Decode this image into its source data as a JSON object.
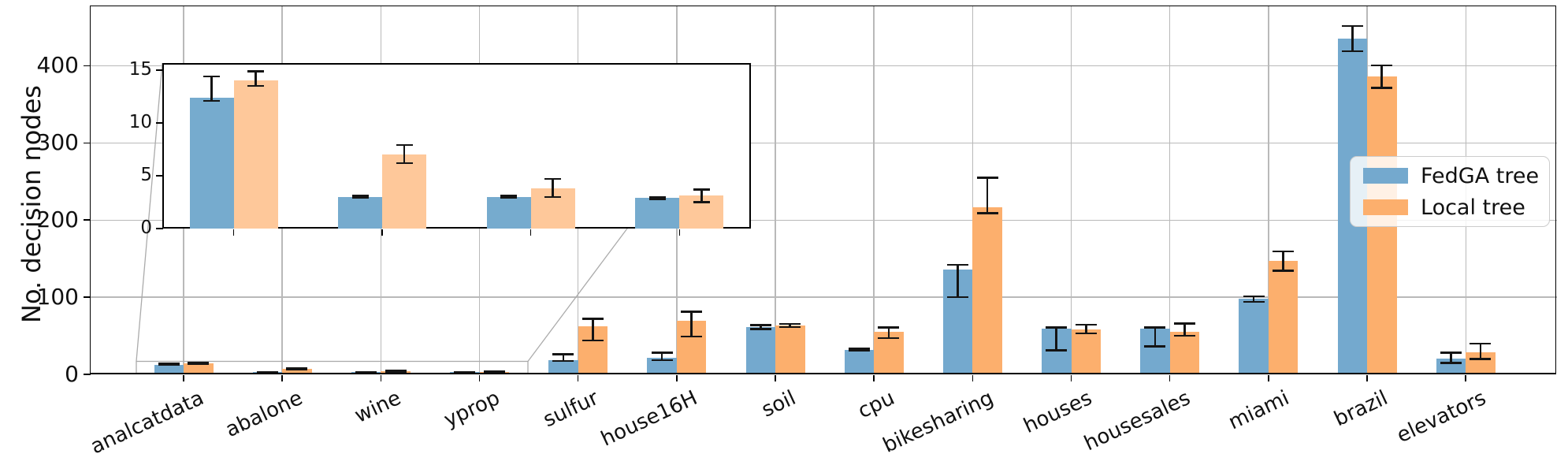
{
  "chart_data": {
    "type": "bar",
    "title": "",
    "xlabel": "",
    "ylabel": "No. decision nodes",
    "categories": [
      "analcatdata",
      "abalone",
      "wine",
      "yprop",
      "sulfur",
      "house16H",
      "soil",
      "cpu",
      "bikesharing",
      "houses",
      "housesales",
      "miami",
      "brazil",
      "elevators"
    ],
    "yticks": [
      0,
      100,
      200,
      300,
      400
    ],
    "ylim": [
      0,
      480
    ],
    "grid": true,
    "legend_position": "center right",
    "series": [
      {
        "name": "FedGA tree",
        "color": "#74A9CE",
        "values": [
          12.4,
          3,
          3,
          2.9,
          18.5,
          21.5,
          61,
          31.5,
          136,
          59,
          59,
          98,
          435,
          20
        ],
        "err_lo": [
          12.1,
          2.9,
          2.9,
          2.8,
          17.5,
          18.5,
          58.5,
          31,
          100,
          31,
          36,
          94,
          419,
          15
        ],
        "err_hi": [
          14.4,
          3.1,
          3.1,
          3.0,
          26,
          28,
          64,
          33.5,
          142,
          60.5,
          61,
          101,
          451.5,
          28
        ]
      },
      {
        "name": "Local tree",
        "color": "#FCAF6D",
        "values": [
          14,
          7,
          3.8,
          3.1,
          62,
          69,
          63.5,
          55,
          217,
          58,
          55,
          147,
          386,
          29
        ],
        "err_lo": [
          13.5,
          6.2,
          3.0,
          2.5,
          44,
          49,
          61.5,
          47,
          209,
          53,
          50,
          134.5,
          371.5,
          20
        ],
        "err_hi": [
          14.9,
          7.9,
          4.7,
          3.7,
          72,
          81,
          65.5,
          60.5,
          255,
          64.5,
          66,
          159.5,
          400.5,
          40
        ]
      }
    ],
    "inset": {
      "note": "zoomed view of first four categories",
      "categories": [
        "analcatdata",
        "abalone",
        "wine",
        "yprop"
      ],
      "yticks": [
        0,
        5,
        10,
        15
      ],
      "ylim": [
        0,
        15.7
      ],
      "colors": {
        "fedga": "#76ABCE",
        "local": "#FEC89A"
      },
      "series": [
        {
          "name": "FedGA tree",
          "values": [
            12.4,
            3,
            3,
            2.9
          ],
          "err_lo": [
            12.1,
            2.9,
            2.9,
            2.8
          ],
          "err_hi": [
            14.4,
            3.1,
            3.1,
            3.0
          ]
        },
        {
          "name": "Local tree",
          "values": [
            14,
            7,
            3.8,
            3.1
          ],
          "err_lo": [
            13.5,
            6.2,
            3.0,
            2.5
          ],
          "err_hi": [
            14.9,
            7.9,
            4.7,
            3.7
          ]
        }
      ]
    }
  },
  "legend": {
    "entries": [
      {
        "label": "FedGA tree",
        "color": "#74A9CE"
      },
      {
        "label": "Local tree",
        "color": "#FCAF6D"
      }
    ]
  },
  "colors": {
    "fedga_main": "#74A9CE",
    "local_main": "#FCAF6D",
    "fedga_inset": "#76ABCE",
    "local_inset": "#FEC89A",
    "grid": "#b9b9b9",
    "error_bar": "#141414",
    "connector": "#ababab",
    "spine": "#000000"
  }
}
